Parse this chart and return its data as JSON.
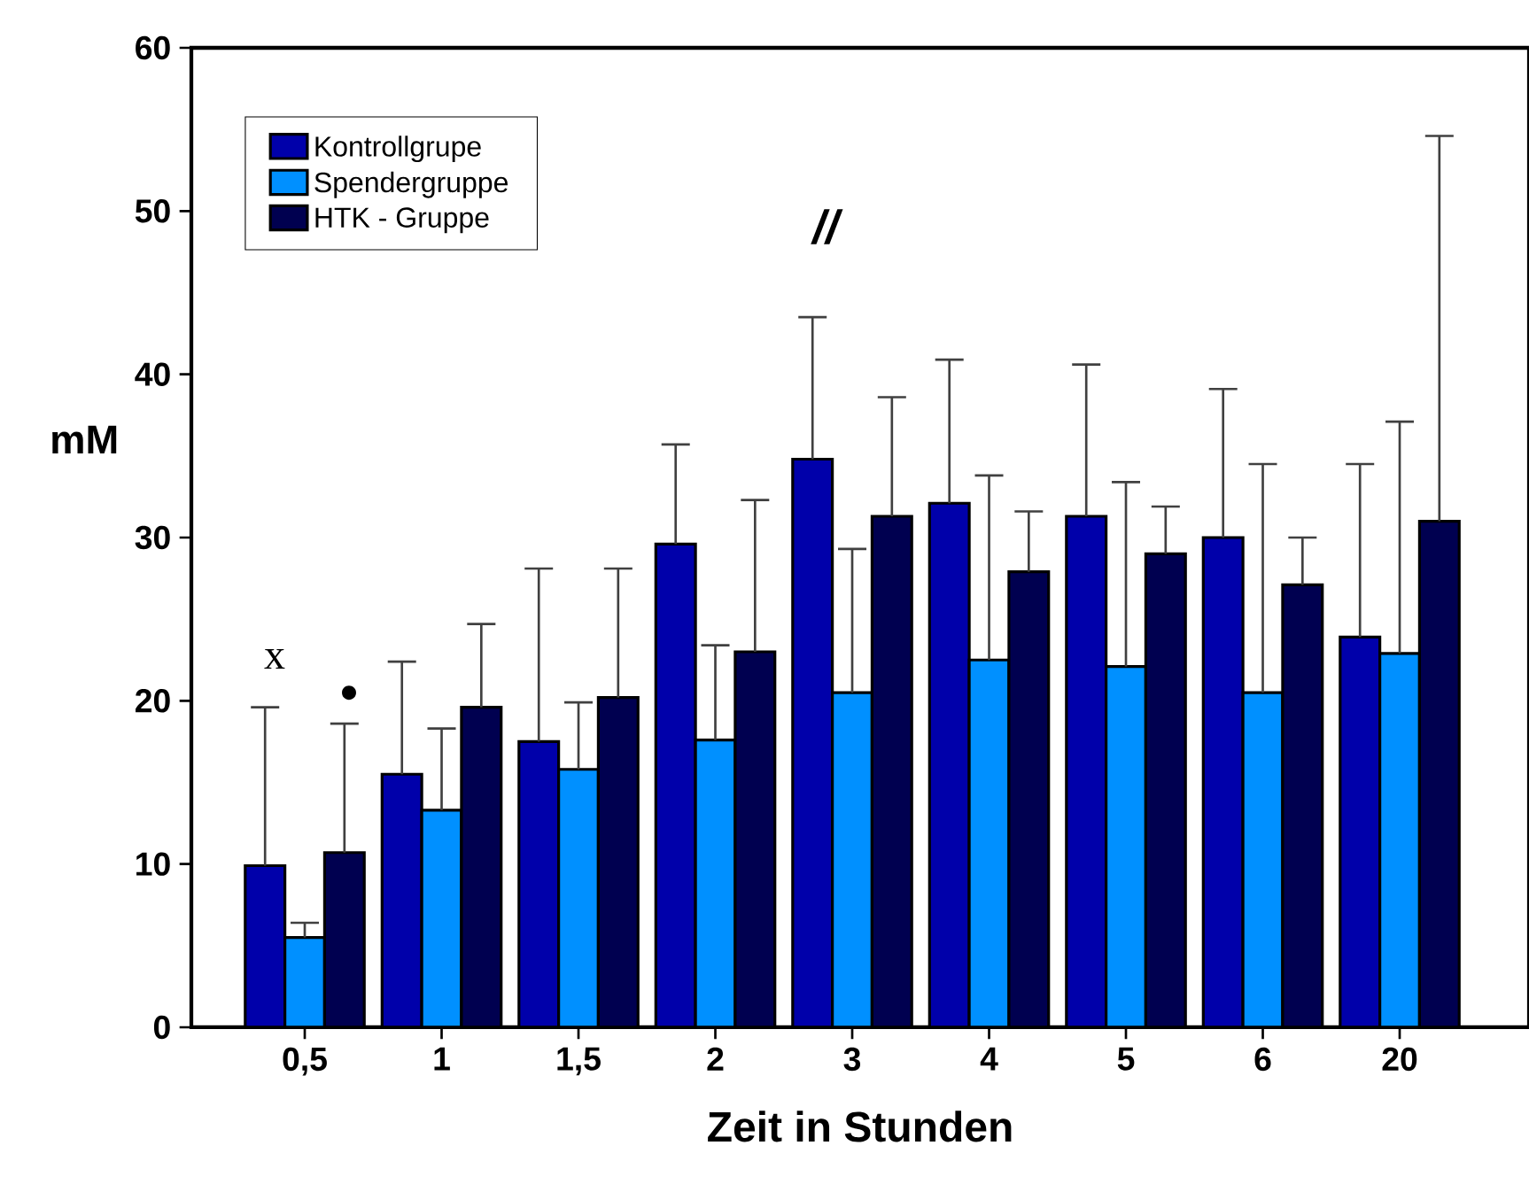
{
  "chart_data": {
    "type": "bar",
    "xlabel": "Zeit in Stunden",
    "ylabel": "mM",
    "categories": [
      "0,5",
      "1",
      "1,5",
      "2",
      "3",
      "4",
      "5",
      "6",
      "20"
    ],
    "series": [
      {
        "name": "Kontrollgrupe",
        "color": "#0000aa",
        "values": [
          9.9,
          15.5,
          17.5,
          29.6,
          34.8,
          32.1,
          31.3,
          30.0,
          23.9
        ],
        "errors": [
          [
            9.9,
            19.6
          ],
          [
            15.5,
            22.4
          ],
          [
            17.5,
            28.1
          ],
          [
            29.6,
            35.7
          ],
          [
            34.8,
            43.5
          ],
          [
            32.1,
            40.9
          ],
          [
            31.3,
            40.6
          ],
          [
            30.0,
            39.1
          ],
          [
            23.9,
            34.5
          ]
        ]
      },
      {
        "name": "Spendergruppe",
        "color": "#0090ff",
        "values": [
          5.5,
          13.3,
          15.8,
          17.6,
          20.5,
          22.5,
          22.1,
          20.5,
          22.9
        ],
        "errors": [
          [
            5.5,
            6.4
          ],
          [
            13.3,
            18.3
          ],
          [
            15.8,
            19.9
          ],
          [
            17.6,
            23.4
          ],
          [
            20.5,
            29.3
          ],
          [
            22.5,
            33.8
          ],
          [
            22.1,
            33.4
          ],
          [
            20.5,
            34.5
          ],
          [
            22.9,
            37.1
          ]
        ]
      },
      {
        "name": "HTK - Gruppe",
        "color": "#000050",
        "values": [
          10.7,
          19.6,
          20.2,
          23.0,
          31.3,
          27.9,
          29.0,
          27.1,
          31.0
        ],
        "errors": [
          [
            10.7,
            18.6
          ],
          [
            19.6,
            24.7
          ],
          [
            20.2,
            28.1
          ],
          [
            23.0,
            32.3
          ],
          [
            31.3,
            38.6
          ],
          [
            27.9,
            31.6
          ],
          [
            29.0,
            31.9
          ],
          [
            27.1,
            30.0
          ],
          [
            31.0,
            54.6
          ]
        ]
      }
    ],
    "ylim": [
      0,
      60
    ],
    "yticks": [
      0,
      10,
      20,
      30,
      40,
      50,
      60
    ],
    "legend": "top left",
    "grid": false,
    "annotations": [
      "x",
      "•",
      "//"
    ]
  }
}
